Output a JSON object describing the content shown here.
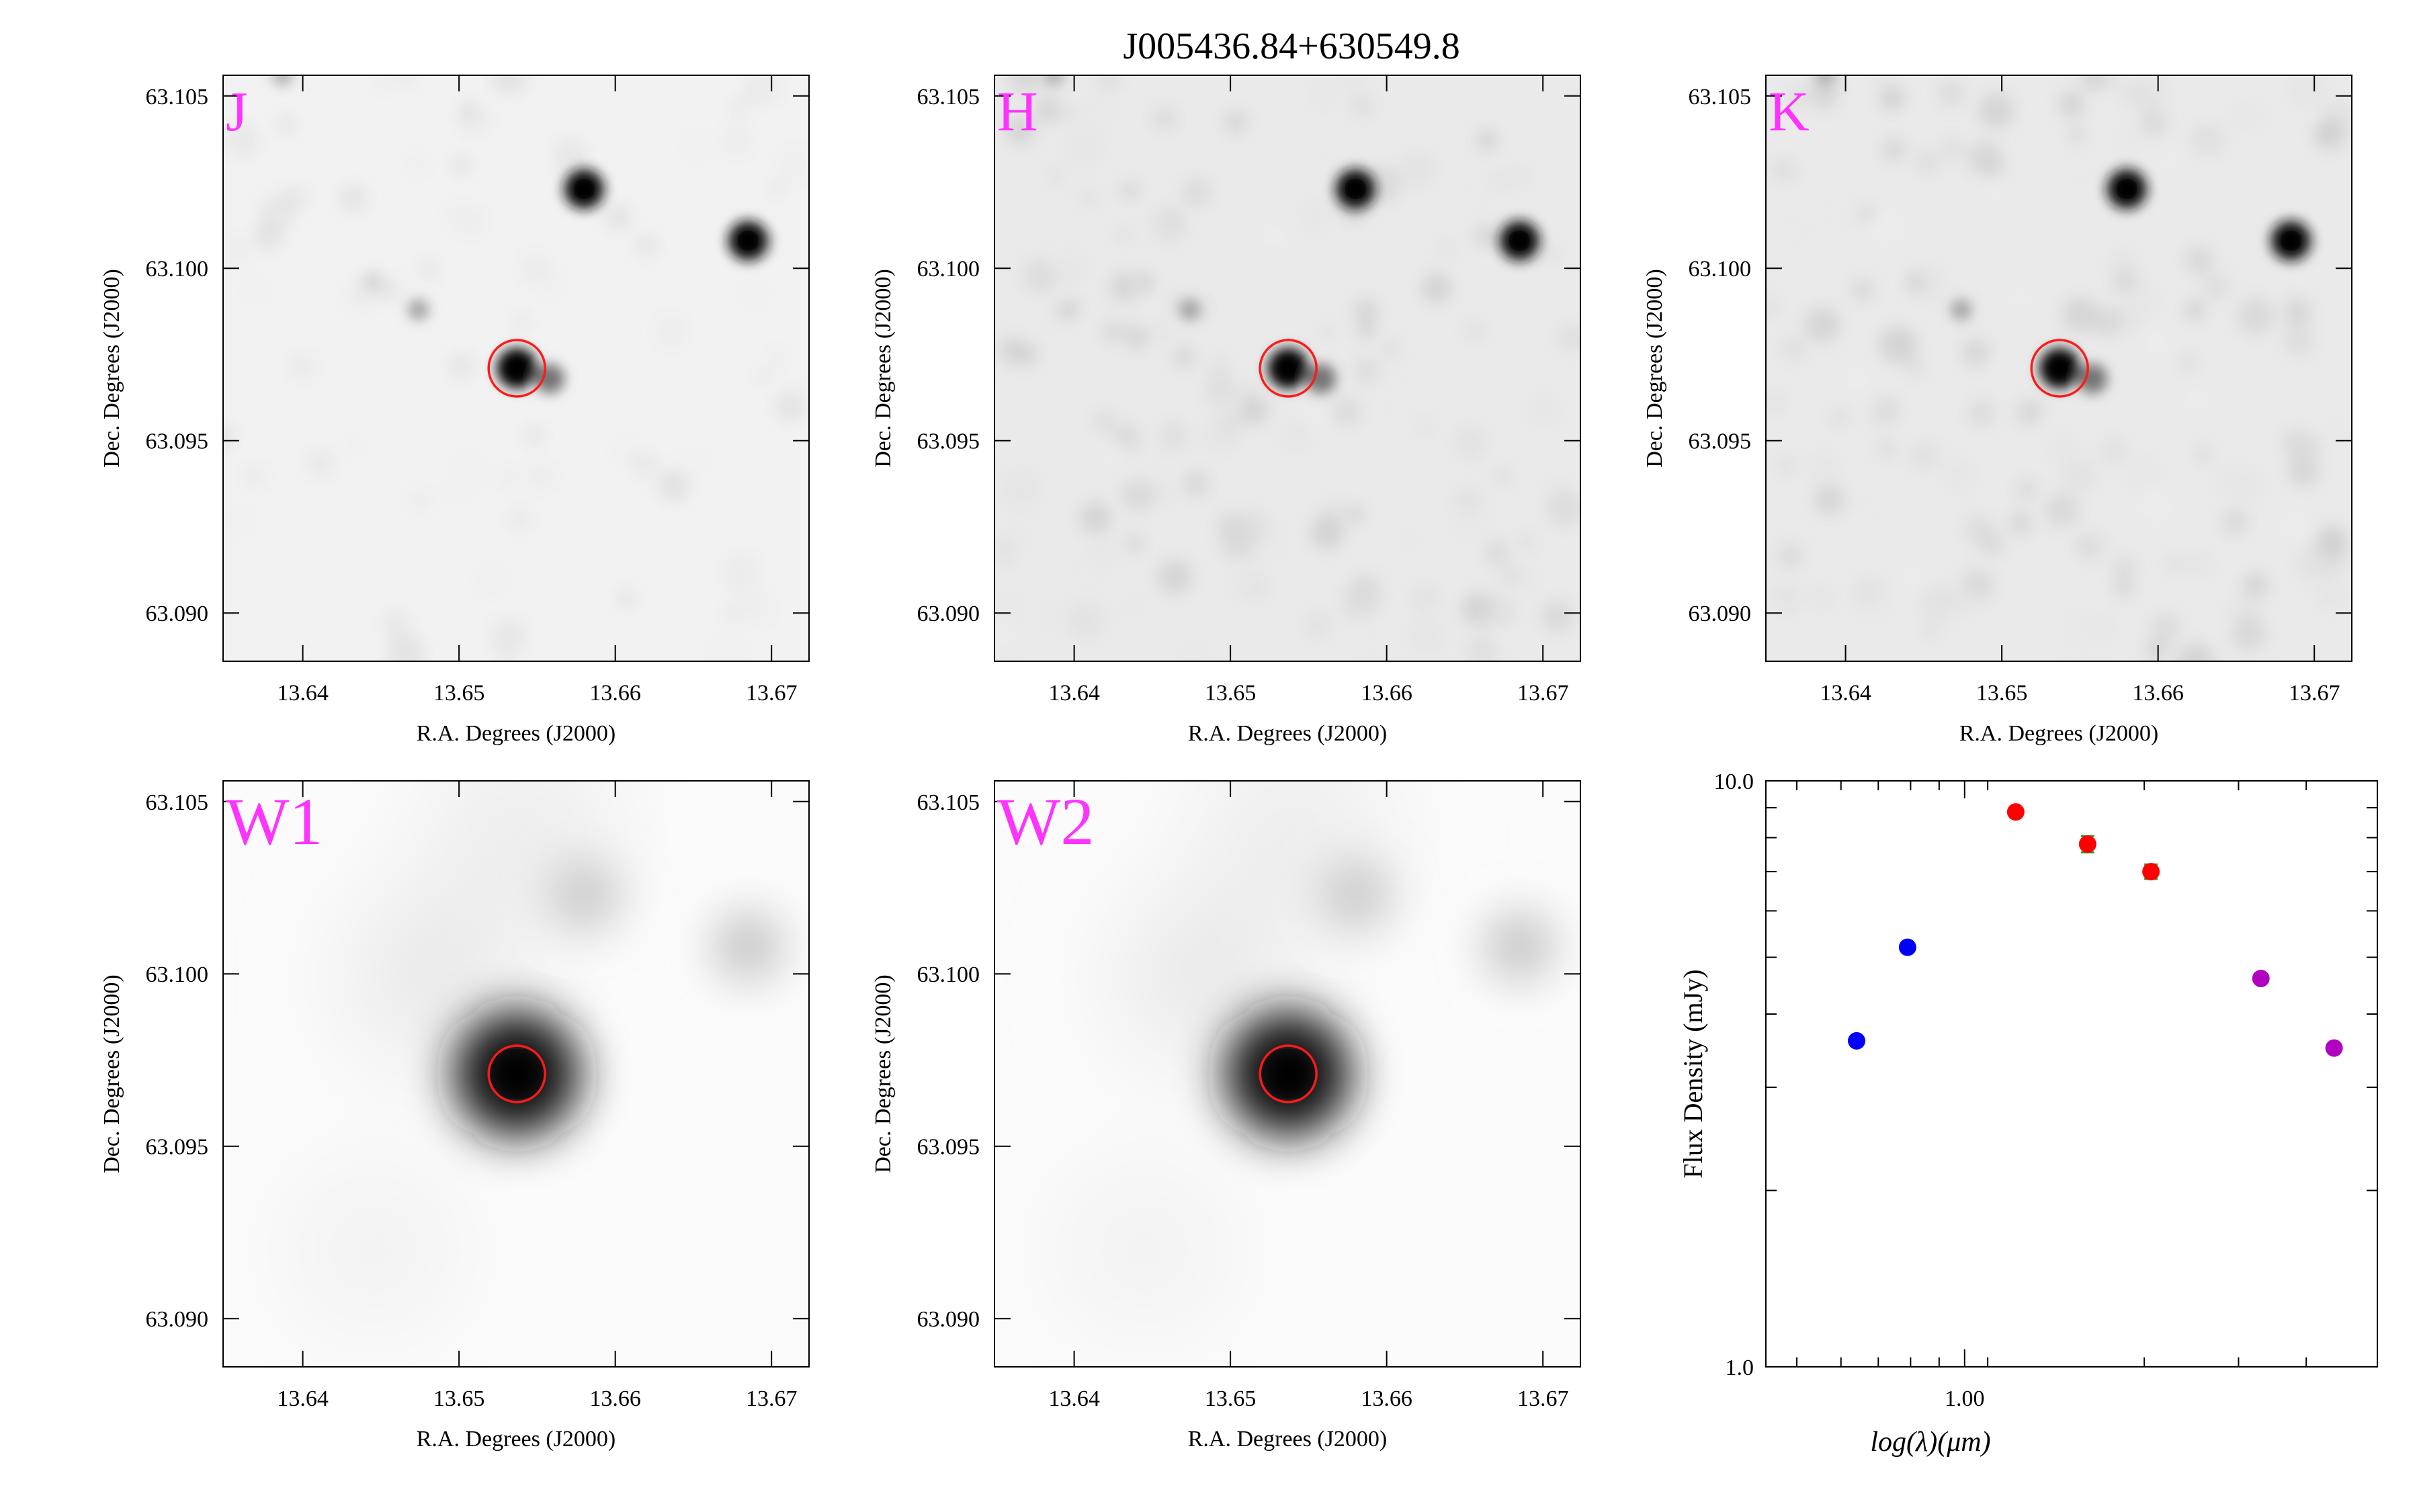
{
  "title": "J005436.84+630549.8",
  "colors": {
    "band_label": "#ff33ff",
    "aperture": "#ff1a1a",
    "source_2mass": "#ff0000",
    "source_optical": "#0000ff",
    "source_wise": "#b000c0"
  },
  "panel_axes": {
    "xlabel": "R.A. Degrees (J2000)",
    "ylabel": "Dec. Degrees (J2000)",
    "xlim": [
      13.6349,
      13.6724
    ],
    "ylim": [
      63.0886,
      63.1056
    ],
    "xticks": [
      "13.64",
      "13.65",
      "13.66",
      "13.67"
    ],
    "yticks": [
      "63.090",
      "63.095",
      "63.100",
      "63.105"
    ]
  },
  "panels": [
    {
      "band": "J",
      "style": "2mass"
    },
    {
      "band": "H",
      "style": "2mass"
    },
    {
      "band": "K",
      "style": "2mass"
    },
    {
      "band": "W1",
      "style": "wise"
    },
    {
      "band": "W2",
      "style": "wise"
    }
  ],
  "aperture": {
    "ra": 13.6537,
    "dec": 63.0971
  },
  "field_sources": [
    {
      "ra": 13.6537,
      "dec": 63.0971,
      "strength": 1.0
    },
    {
      "ra": 13.6558,
      "dec": 63.0968,
      "strength": 0.55
    },
    {
      "ra": 13.658,
      "dec": 63.1023,
      "strength": 0.9
    },
    {
      "ra": 13.6685,
      "dec": 63.1008,
      "strength": 0.9
    },
    {
      "ra": 13.6474,
      "dec": 63.0988,
      "strength": 0.35
    },
    {
      "ra": 13.6445,
      "dec": 63.0996,
      "strength": 0.15
    },
    {
      "ra": 13.6387,
      "dec": 63.1056,
      "strength": 0.3
    }
  ],
  "chart_data": {
    "type": "scatter",
    "title": "",
    "xlabel": "log(λ)(μm)",
    "ylabel": "Flux Density (mJy)",
    "xscale": "log",
    "yscale": "log",
    "xlim": [
      0.44,
      5.5
    ],
    "ylim": [
      1.0,
      10.0
    ],
    "xticks": [
      "1.00"
    ],
    "yticks": [
      "1.0",
      "10.0"
    ],
    "series": [
      {
        "color": "#0000ff",
        "points": [
          {
            "x": 0.64,
            "y": 3.6
          },
          {
            "x": 0.79,
            "y": 5.2
          }
        ]
      },
      {
        "color": "#ff0000",
        "points": [
          {
            "x": 1.235,
            "y": 8.85,
            "err": 0.15
          },
          {
            "x": 1.662,
            "y": 7.8,
            "err": 0.25
          },
          {
            "x": 2.159,
            "y": 7.0,
            "err": 0.2
          }
        ]
      },
      {
        "color": "#b000c0",
        "points": [
          {
            "x": 3.4,
            "y": 4.6
          },
          {
            "x": 4.6,
            "y": 3.5
          }
        ]
      }
    ]
  }
}
